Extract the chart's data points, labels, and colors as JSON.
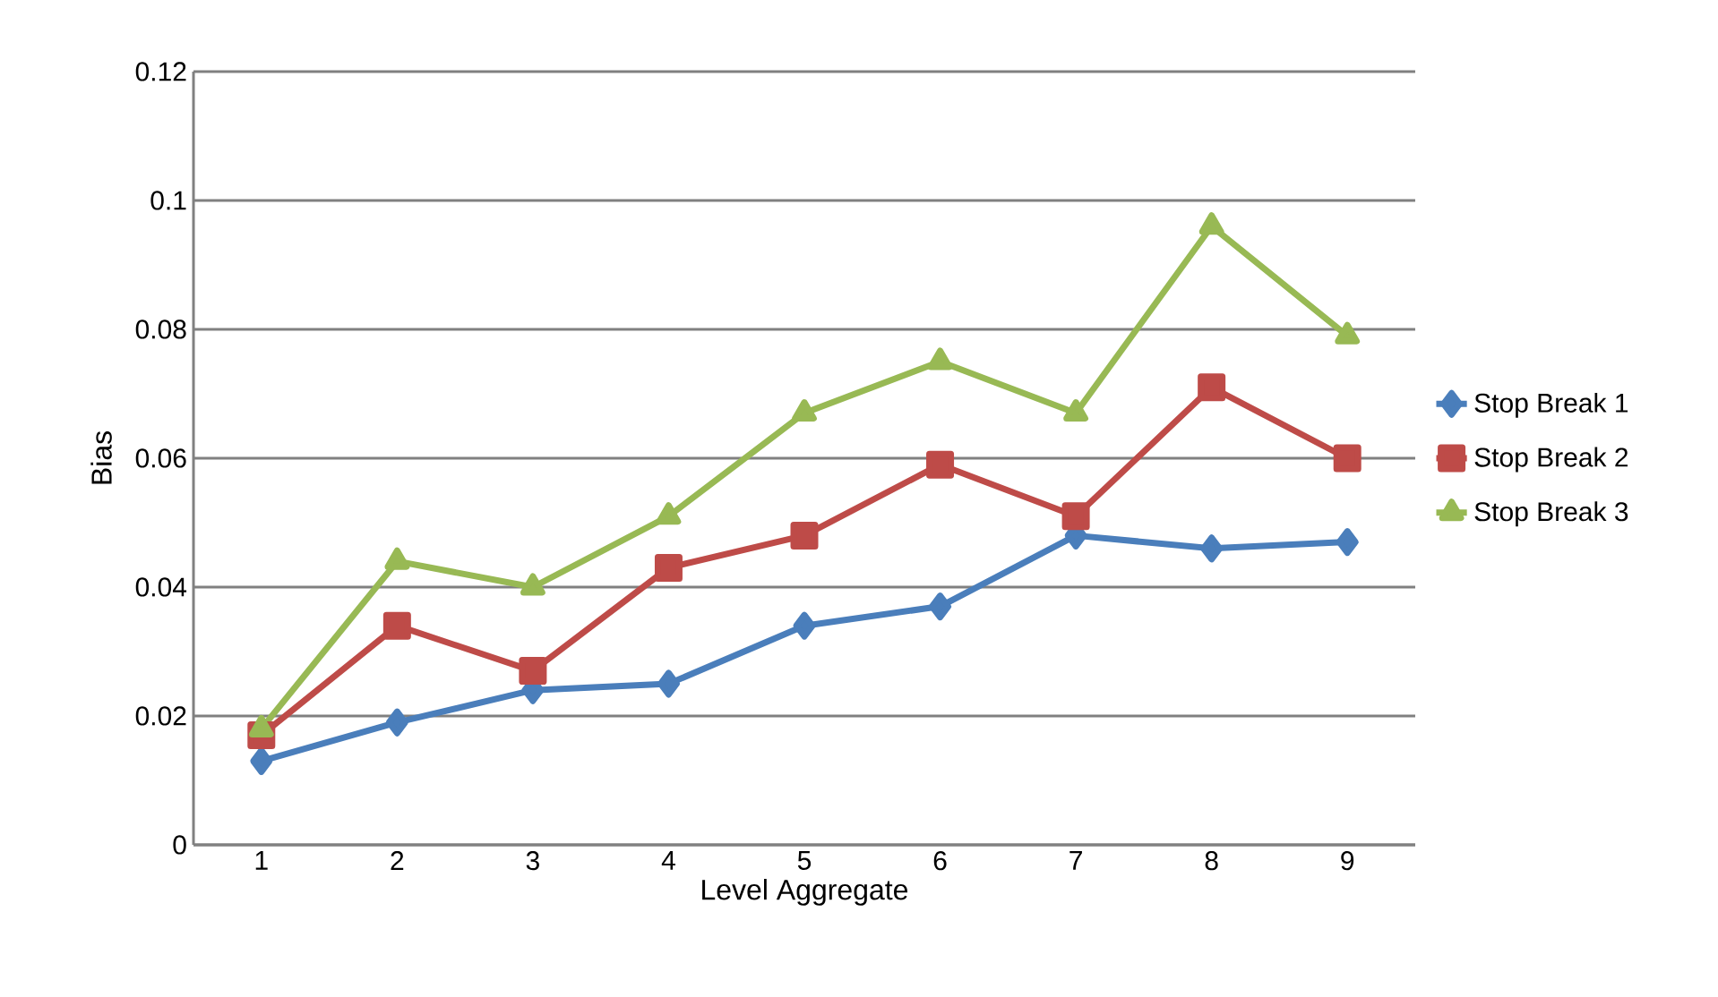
{
  "chart_data": {
    "type": "line",
    "xlabel": "Level  Aggregate",
    "ylabel": "Bias",
    "categories": [
      "1",
      "2",
      "3",
      "4",
      "5",
      "6",
      "7",
      "8",
      "9"
    ],
    "series": [
      {
        "name": "Stop Break 1",
        "color": "#4a7ebb",
        "marker": "diamond",
        "values": [
          0.013,
          0.019,
          0.024,
          0.025,
          0.034,
          0.037,
          0.048,
          0.046,
          0.047
        ]
      },
      {
        "name": "Stop Break 2",
        "color": "#be4b48",
        "marker": "square",
        "values": [
          0.017,
          0.034,
          0.027,
          0.043,
          0.048,
          0.059,
          0.051,
          0.071,
          0.06
        ]
      },
      {
        "name": "Stop Break 3",
        "color": "#98b954",
        "marker": "triangle",
        "values": [
          0.018,
          0.044,
          0.04,
          0.051,
          0.067,
          0.075,
          0.067,
          0.096,
          0.079
        ]
      }
    ],
    "ylim": [
      0,
      0.12
    ],
    "yticks": [
      0,
      0.02,
      0.04,
      0.06,
      0.08,
      0.1,
      0.12
    ],
    "grid": "y",
    "legend": "right"
  }
}
